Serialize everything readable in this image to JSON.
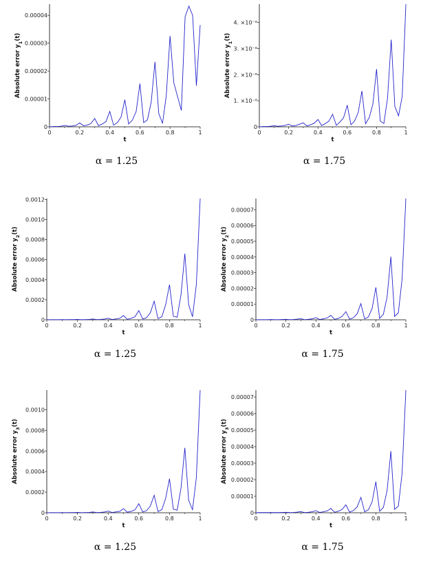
{
  "chart_data": [
    {
      "type": "line",
      "ylabel": "Absolute error y_1(t)",
      "xlabel": "t",
      "caption": "α = 1.25",
      "xlim": [
        0,
        1
      ],
      "ylim": [
        0,
        4.4e-05
      ],
      "xticks": [
        "0",
        "0.2",
        "0.4",
        "0.6",
        "0.8",
        "1"
      ],
      "yticks": [
        {
          "v": 0,
          "label": "0"
        },
        {
          "v": 1e-05,
          "label": "0.00001"
        },
        {
          "v": 2e-05,
          "label": "0.00002"
        },
        {
          "v": 3e-05,
          "label": "0.00003"
        },
        {
          "v": 4e-05,
          "label": "0.00004"
        }
      ],
      "series": [
        {
          "color": "#2222cc",
          "x": [
            0,
            0.025,
            0.05,
            0.075,
            0.1,
            0.125,
            0.15,
            0.175,
            0.2,
            0.225,
            0.25,
            0.275,
            0.3,
            0.325,
            0.35,
            0.375,
            0.4,
            0.425,
            0.45,
            0.475,
            0.5,
            0.525,
            0.55,
            0.575,
            0.6,
            0.625,
            0.65,
            0.675,
            0.7,
            0.725,
            0.75,
            0.775,
            0.8,
            0.825,
            0.85,
            0.875,
            0.9,
            0.925,
            0.95,
            0.975,
            1
          ],
          "y": [
            0,
            1e-07,
            1e-07,
            2e-07,
            5e-07,
            2e-07,
            3e-07,
            5e-07,
            1.4e-06,
            4e-07,
            6e-07,
            1.2e-06,
            3e-06,
            4e-07,
            1e-06,
            1.9e-06,
            5.5e-06,
            6e-07,
            1.5e-06,
            3.5e-06,
            9.7e-06,
            1e-06,
            2.4e-06,
            5.5e-06,
            1.55e-05,
            1.5e-06,
            2.5e-06,
            8.9e-06,
            2.33e-05,
            4.8e-06,
            1.2e-06,
            1.12e-05,
            3.26e-05,
            1.58e-05,
            1.08e-05,
            5.9e-06,
            3.95e-05,
            4.33e-05,
            4e-05,
            1.47e-05,
            3.65e-05
          ]
        }
      ]
    },
    {
      "type": "line",
      "ylabel": "Absolute error y_1(t)",
      "xlabel": "t",
      "caption": "α = 1.75",
      "xlim": [
        0,
        1
      ],
      "ylim": [
        0,
        4.7e-06
      ],
      "xticks": [
        "0",
        "0.2",
        "0.4",
        "0.6",
        "0.8",
        "1"
      ],
      "yticks": [
        {
          "v": 0,
          "label": "0"
        },
        {
          "v": 1e-06,
          "label": "1. ×10⁻⁶"
        },
        {
          "v": 2e-06,
          "label": "2. ×10⁻⁶"
        },
        {
          "v": 3e-06,
          "label": "3. ×10⁻⁶"
        },
        {
          "v": 4e-06,
          "label": "4. ×10⁻⁶"
        }
      ],
      "series": [
        {
          "color": "#2222cc",
          "x": [
            0,
            0.025,
            0.05,
            0.075,
            0.1,
            0.125,
            0.15,
            0.175,
            0.2,
            0.225,
            0.25,
            0.275,
            0.3,
            0.325,
            0.35,
            0.375,
            0.4,
            0.425,
            0.45,
            0.475,
            0.5,
            0.525,
            0.55,
            0.575,
            0.6,
            0.625,
            0.65,
            0.675,
            0.7,
            0.725,
            0.75,
            0.775,
            0.8,
            0.825,
            0.85,
            0.875,
            0.9,
            0.925,
            0.95,
            0.975,
            1
          ],
          "y": [
            0,
            1e-08,
            1e-08,
            2e-08,
            4e-08,
            2e-08,
            3e-08,
            5e-08,
            1e-07,
            3e-08,
            5e-08,
            1e-07,
            1.5e-07,
            3e-08,
            8e-08,
            1.4e-07,
            2.8e-07,
            5e-08,
            1.2e-07,
            2.2e-07,
            4.8e-07,
            6e-08,
            1.8e-07,
            3.5e-07,
            8.3e-07,
            8e-08,
            2.2e-07,
            5.5e-07,
            1.37e-06,
            1.2e-07,
            3.5e-07,
            8.7e-07,
            2.21e-06,
            2.2e-07,
            1.3e-07,
            1.1e-06,
            3.34e-06,
            7.8e-07,
            4.2e-07,
            1.16e-06,
            4.7e-06
          ]
        }
      ]
    },
    {
      "type": "line",
      "ylabel": "Absolute error y_2(t)",
      "xlabel": "t",
      "caption": "α = 1.25",
      "xlim": [
        0,
        1
      ],
      "ylim": [
        0,
        0.00121
      ],
      "xticks": [
        "0",
        "0.2",
        "0.4",
        "0.6",
        "0.8",
        "1"
      ],
      "yticks": [
        {
          "v": 0,
          "label": "0"
        },
        {
          "v": 0.0002,
          "label": "0.0002"
        },
        {
          "v": 0.0004,
          "label": "0.0004"
        },
        {
          "v": 0.0006,
          "label": "0.0006"
        },
        {
          "v": 0.0008,
          "label": "0.0008"
        },
        {
          "v": 0.001,
          "label": "0.0010"
        },
        {
          "v": 0.0012,
          "label": "0.0012"
        }
      ],
      "series": [
        {
          "color": "#2222cc",
          "x": [
            0,
            0.025,
            0.05,
            0.075,
            0.1,
            0.125,
            0.15,
            0.175,
            0.2,
            0.225,
            0.25,
            0.275,
            0.3,
            0.325,
            0.35,
            0.375,
            0.4,
            0.425,
            0.45,
            0.475,
            0.5,
            0.525,
            0.55,
            0.575,
            0.6,
            0.625,
            0.65,
            0.675,
            0.7,
            0.725,
            0.75,
            0.775,
            0.8,
            0.825,
            0.85,
            0.875,
            0.9,
            0.925,
            0.95,
            0.975,
            1
          ],
          "y": [
            0,
            1e-06,
            1e-06,
            1e-06,
            2e-06,
            1e-06,
            2e-06,
            2e-06,
            4e-06,
            1e-06,
            2e-06,
            3e-06,
            8e-06,
            2e-06,
            4e-06,
            7e-06,
            1.6e-05,
            3e-06,
            8e-06,
            1.5e-05,
            4.2e-05,
            5e-06,
            1.5e-05,
            3e-05,
            9.2e-05,
            8e-06,
            2e-05,
            7e-05,
            0.000185,
            1.2e-05,
            3e-05,
            0.00015,
            0.00035,
            3.5e-05,
            2.5e-05,
            0.00025,
            0.00066,
            0.00015,
            3e-05,
            0.00035,
            0.00121
          ]
        }
      ]
    },
    {
      "type": "line",
      "ylabel": "Absolute error y_2(t)",
      "xlabel": "t",
      "caption": "α = 1.75",
      "xlim": [
        0,
        1
      ],
      "ylim": [
        0,
        7.72e-05
      ],
      "xticks": [
        "0",
        "0.2",
        "0.4",
        "0.6",
        "0.8",
        "1"
      ],
      "yticks": [
        {
          "v": 0,
          "label": "0"
        },
        {
          "v": 1e-05,
          "label": "0.00001"
        },
        {
          "v": 2e-05,
          "label": "0.00002"
        },
        {
          "v": 3e-05,
          "label": "0.00003"
        },
        {
          "v": 4e-05,
          "label": "0.00004"
        },
        {
          "v": 5e-05,
          "label": "0.00005"
        },
        {
          "v": 6e-05,
          "label": "0.00006"
        },
        {
          "v": 7e-05,
          "label": "0.00007"
        }
      ],
      "series": [
        {
          "color": "#2222cc",
          "x": [
            0,
            0.025,
            0.05,
            0.075,
            0.1,
            0.125,
            0.15,
            0.175,
            0.2,
            0.225,
            0.25,
            0.275,
            0.3,
            0.325,
            0.35,
            0.375,
            0.4,
            0.425,
            0.45,
            0.475,
            0.5,
            0.525,
            0.55,
            0.575,
            0.6,
            0.625,
            0.65,
            0.675,
            0.7,
            0.725,
            0.75,
            0.775,
            0.8,
            0.825,
            0.85,
            0.875,
            0.9,
            0.925,
            0.95,
            0.975,
            1
          ],
          "y": [
            0,
            1e-07,
            1e-07,
            1e-07,
            2e-07,
            1e-07,
            1e-07,
            2e-07,
            3e-07,
            1e-07,
            2e-07,
            4e-07,
            7e-07,
            1e-07,
            3e-07,
            6e-07,
            1.4e-06,
            2e-07,
            6e-07,
            1.2e-06,
            2.8e-06,
            3e-07,
            9e-07,
            2.2e-06,
            5.2e-06,
            4e-07,
            1.3e-06,
            3.8e-06,
            1.03e-05,
            6e-07,
            1.8e-06,
            7.2e-06,
            2.06e-05,
            9e-07,
            3.5e-06,
            1.45e-05,
            4.02e-05,
            2.1e-06,
            4.5e-06,
            2.6e-05,
            7.72e-05
          ]
        }
      ]
    },
    {
      "type": "line",
      "ylabel": "Absolute error y_3(t)",
      "xlabel": "t",
      "caption": "α = 1.25",
      "xlim": [
        0,
        1
      ],
      "ylim": [
        0,
        0.00119
      ],
      "xticks": [
        "0",
        "0.2",
        "0.4",
        "0.6",
        "0.8",
        "1"
      ],
      "yticks": [
        {
          "v": 0,
          "label": "0"
        },
        {
          "v": 0.0002,
          "label": "0.0002"
        },
        {
          "v": 0.0004,
          "label": "0.0004"
        },
        {
          "v": 0.0006,
          "label": "0.0006"
        },
        {
          "v": 0.0008,
          "label": "0.0008"
        },
        {
          "v": 0.001,
          "label": "0.0010"
        }
      ],
      "series": [
        {
          "color": "#2222cc",
          "x": [
            0,
            0.025,
            0.05,
            0.075,
            0.1,
            0.125,
            0.15,
            0.175,
            0.2,
            0.225,
            0.25,
            0.275,
            0.3,
            0.325,
            0.35,
            0.375,
            0.4,
            0.425,
            0.45,
            0.475,
            0.5,
            0.525,
            0.55,
            0.575,
            0.6,
            0.625,
            0.65,
            0.675,
            0.7,
            0.725,
            0.75,
            0.775,
            0.8,
            0.825,
            0.85,
            0.875,
            0.9,
            0.925,
            0.95,
            0.975,
            1
          ],
          "y": [
            0,
            1e-06,
            1e-06,
            1e-06,
            2e-06,
            1e-06,
            2e-06,
            2e-06,
            4e-06,
            1e-06,
            2e-06,
            3e-06,
            8e-06,
            2e-06,
            4e-06,
            7e-06,
            1.6e-05,
            3e-06,
            8e-06,
            1.4e-05,
            4e-05,
            5e-06,
            1.4e-05,
            2.8e-05,
            8.8e-05,
            8e-06,
            2e-05,
            6.5e-05,
            0.00017,
            1.2e-05,
            3e-05,
            0.00014,
            0.00033,
            3.5e-05,
            2.5e-05,
            0.00024,
            0.00063,
            0.00012,
            3e-05,
            0.00034,
            0.00119
          ]
        }
      ]
    },
    {
      "type": "line",
      "ylabel": "Absolute error y_3(t)",
      "xlabel": "t",
      "caption": "α = 1.75",
      "xlim": [
        0,
        1
      ],
      "ylim": [
        0,
        7.42e-05
      ],
      "xticks": [
        "0",
        "0.2",
        "0.4",
        "0.6",
        "0.8",
        "1"
      ],
      "yticks": [
        {
          "v": 0,
          "label": "0"
        },
        {
          "v": 1e-05,
          "label": "0.00001"
        },
        {
          "v": 2e-05,
          "label": "0.00002"
        },
        {
          "v": 3e-05,
          "label": "0.00003"
        },
        {
          "v": 4e-05,
          "label": "0.00004"
        },
        {
          "v": 5e-05,
          "label": "0.00005"
        },
        {
          "v": 6e-05,
          "label": "0.00006"
        },
        {
          "v": 7e-05,
          "label": "0.00007"
        }
      ],
      "series": [
        {
          "color": "#2222cc",
          "x": [
            0,
            0.025,
            0.05,
            0.075,
            0.1,
            0.125,
            0.15,
            0.175,
            0.2,
            0.225,
            0.25,
            0.275,
            0.3,
            0.325,
            0.35,
            0.375,
            0.4,
            0.425,
            0.45,
            0.475,
            0.5,
            0.525,
            0.55,
            0.575,
            0.6,
            0.625,
            0.65,
            0.675,
            0.7,
            0.725,
            0.75,
            0.775,
            0.8,
            0.825,
            0.85,
            0.875,
            0.9,
            0.925,
            0.95,
            0.975,
            1
          ],
          "y": [
            0,
            1e-07,
            1e-07,
            1e-07,
            2e-07,
            1e-07,
            1e-07,
            2e-07,
            3e-07,
            1e-07,
            2e-07,
            4e-07,
            7e-07,
            1e-07,
            3e-07,
            6e-07,
            1.3e-06,
            2e-07,
            6e-07,
            1.1e-06,
            2.6e-06,
            3e-07,
            9e-07,
            2e-06,
            4.8e-06,
            4e-07,
            1.3e-06,
            3.5e-06,
            9.3e-06,
            6e-07,
            1.8e-06,
            6.6e-06,
            1.88e-05,
            9e-07,
            3.2e-06,
            1.35e-05,
            3.73e-05,
            2e-06,
            4e-06,
            2.4e-05,
            7.42e-05
          ]
        }
      ]
    }
  ]
}
